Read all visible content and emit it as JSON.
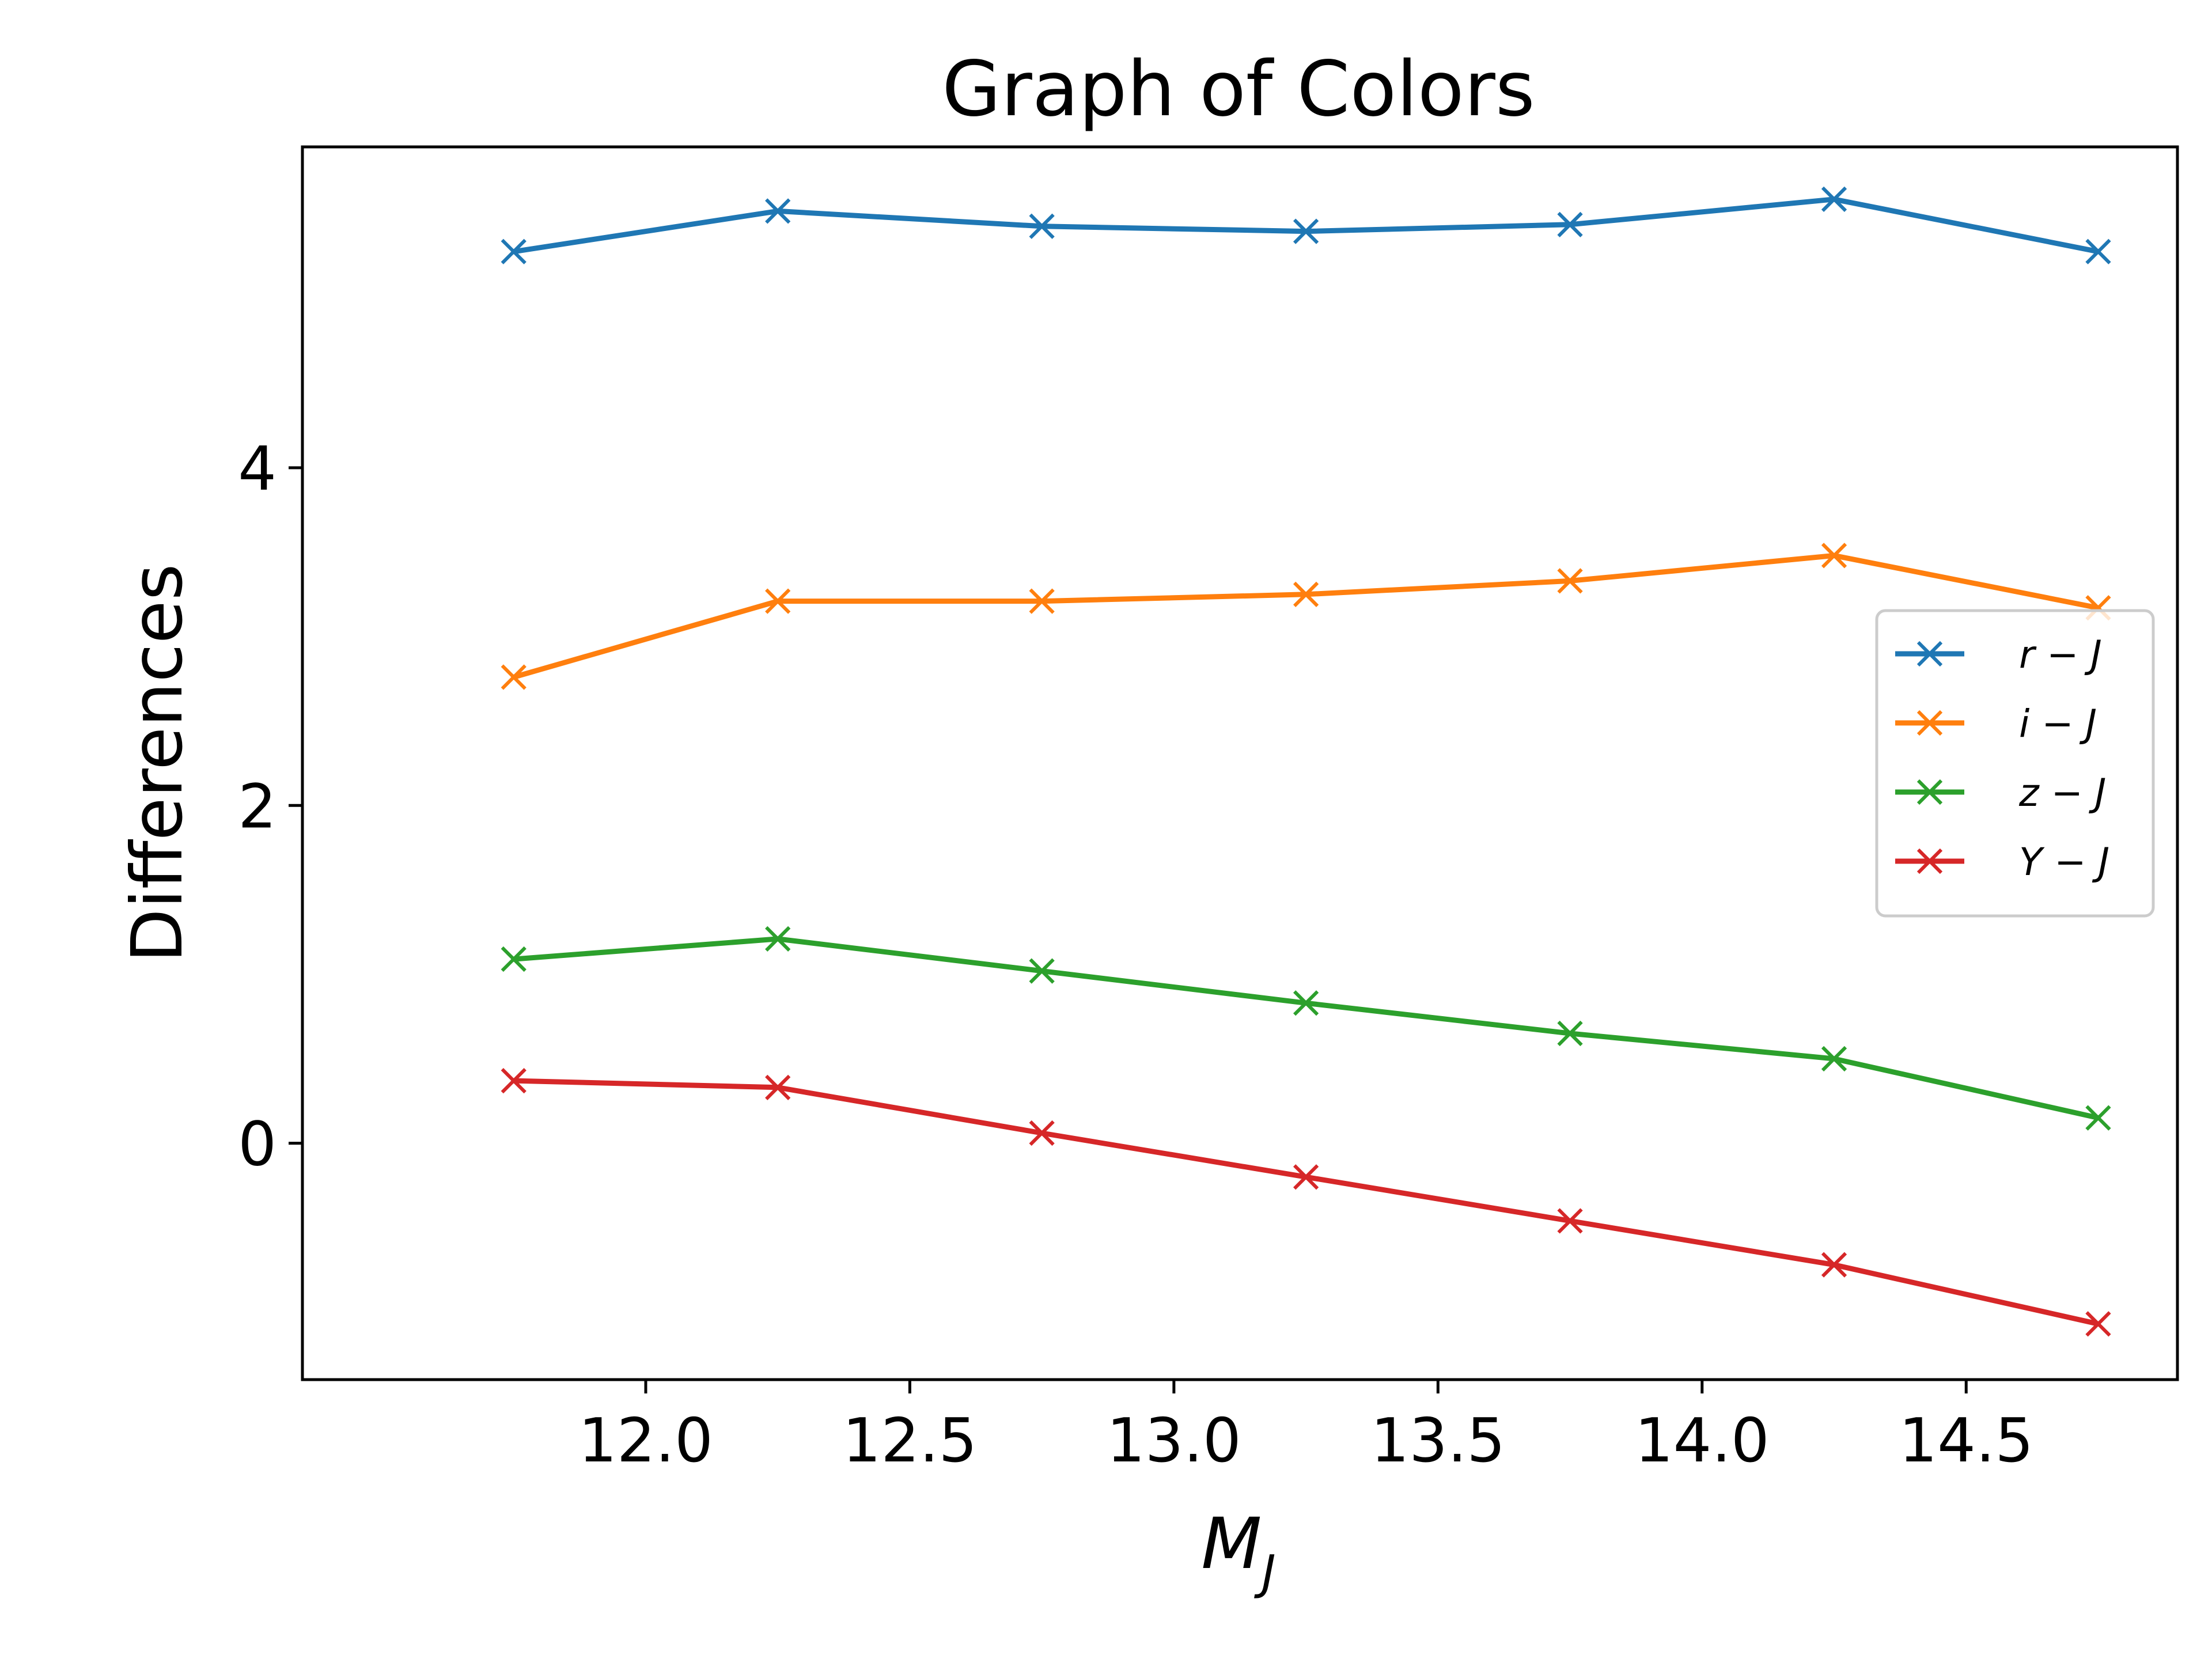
{
  "chart_data": {
    "type": "line",
    "title": "Graph of Colors",
    "xlabel": "M",
    "xlabel_sub": "J",
    "ylabel": "Differences",
    "x": [
      11.75,
      12.25,
      12.75,
      13.25,
      13.75,
      14.25,
      14.75
    ],
    "xlim": [
      11.35,
      14.9
    ],
    "ylim": [
      -1.4,
      5.9
    ],
    "xticks": [
      12.0,
      12.5,
      13.0,
      13.5,
      14.0,
      14.5
    ],
    "xtick_labels": [
      "12.0",
      "12.5",
      "13.0",
      "13.5",
      "14.0",
      "14.5"
    ],
    "yticks": [
      0,
      2,
      4
    ],
    "ytick_labels": [
      "0",
      "2",
      "4"
    ],
    "grid": false,
    "marker": "x",
    "legend_position": "center-right",
    "series": [
      {
        "name": "r − J",
        "color": "#1f77b4",
        "values": [
          5.28,
          5.52,
          5.43,
          5.4,
          5.44,
          5.59,
          5.28
        ]
      },
      {
        "name": "i − J",
        "color": "#ff7f0e",
        "values": [
          2.76,
          3.21,
          3.21,
          3.25,
          3.33,
          3.48,
          3.17
        ]
      },
      {
        "name": "z − J",
        "color": "#2ca02c",
        "values": [
          1.09,
          1.21,
          1.02,
          0.83,
          0.65,
          0.5,
          0.15
        ]
      },
      {
        "name": "Y − J",
        "color": "#d62728",
        "values": [
          0.37,
          0.33,
          0.06,
          -0.2,
          -0.46,
          -0.72,
          -1.07
        ]
      }
    ]
  }
}
